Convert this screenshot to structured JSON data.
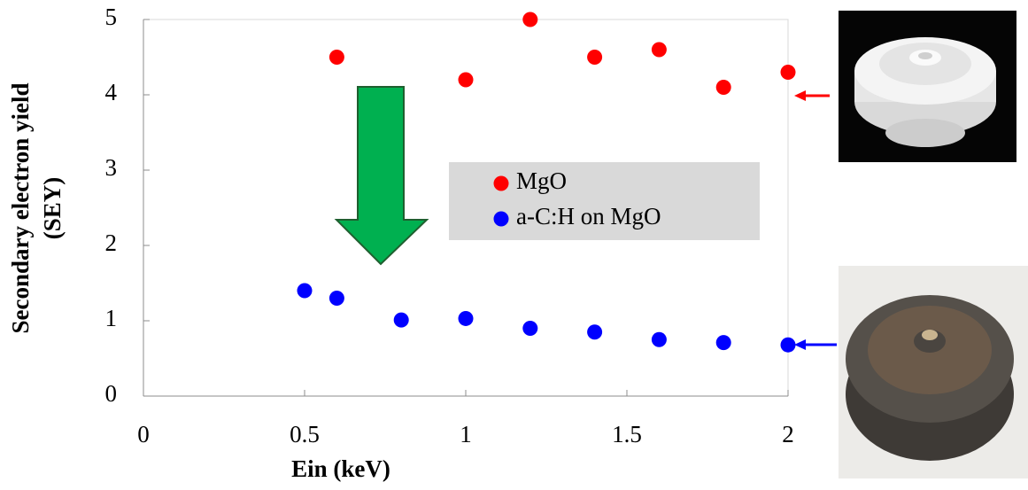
{
  "chart_data": {
    "type": "scatter",
    "xlabel": "Ein (keV)",
    "ylabel": [
      "Secondary electron yield",
      "(SEY)"
    ],
    "xlim": [
      0,
      2
    ],
    "xticks": [
      0,
      0.5,
      1,
      1.5,
      2
    ],
    "ylim": [
      0,
      5
    ],
    "yticks": [
      0,
      1,
      2,
      3,
      4,
      5
    ],
    "legend": "center",
    "series": [
      {
        "name": "MgO",
        "color": "#ff0000",
        "x": [
          0.6,
          1.0,
          1.2,
          1.4,
          1.6,
          1.8,
          2.0
        ],
        "values": [
          4.5,
          4.2,
          5.0,
          4.5,
          4.6,
          4.1,
          4.3
        ]
      },
      {
        "name": "a-C:H on MgO",
        "color": "#0000ff",
        "x": [
          0.5,
          0.6,
          0.8,
          1.0,
          1.2,
          1.4,
          1.6,
          1.8,
          2.0
        ],
        "values": [
          1.4,
          1.3,
          1.01,
          1.03,
          0.9,
          0.85,
          0.75,
          0.71,
          0.68
        ]
      }
    ]
  }
}
